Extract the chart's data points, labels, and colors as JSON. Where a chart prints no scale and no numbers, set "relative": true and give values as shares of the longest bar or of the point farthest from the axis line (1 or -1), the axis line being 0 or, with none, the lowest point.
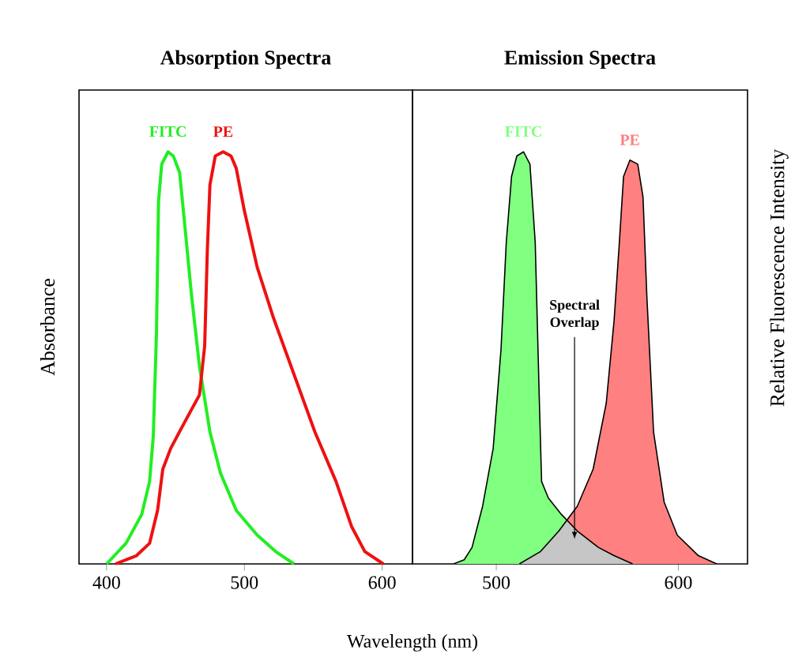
{
  "chart_data": [
    {
      "type": "line",
      "title": "Absorption Spectra",
      "xlabel": "Wavelength (nm)",
      "ylabel": "Absorbance",
      "relative": true,
      "xlim": [
        380,
        622
      ],
      "xticks": [
        400,
        500,
        600
      ],
      "series": [
        {
          "name": "FITC",
          "color": "#22ee22",
          "x": [
            400,
            414.1,
            425.5,
            431.2,
            433.9,
            436.2,
            437.7,
            440.0,
            444.6,
            448.4,
            453.0,
            456.8,
            461.7,
            467.4,
            475.0,
            482.7,
            494.1,
            509.3,
            522.7,
            536.0
          ],
          "values": [
            0,
            0.05,
            0.12,
            0.2,
            0.31,
            0.56,
            0.88,
            0.97,
            1,
            0.99,
            0.95,
            0.82,
            0.65,
            0.48,
            0.32,
            0.22,
            0.13,
            0.07,
            0.03,
            0
          ]
        },
        {
          "name": "PE",
          "color": "#ee1111",
          "x": [
            406.5,
            421.7,
            431.2,
            437.0,
            440.8,
            446.5,
            456.0,
            467.4,
            471.2,
            473.1,
            475.0,
            478.9,
            484.6,
            490.3,
            494.1,
            499.8,
            509.3,
            520.8,
            536.0,
            551.2,
            566.5,
            577.9,
            587.4,
            600.8
          ],
          "values": [
            0,
            0.02,
            0.05,
            0.13,
            0.23,
            0.28,
            0.34,
            0.41,
            0.53,
            0.76,
            0.92,
            0.99,
            1,
            0.99,
            0.96,
            0.86,
            0.72,
            0.6,
            0.46,
            0.32,
            0.2,
            0.09,
            0.03,
            0
          ]
        }
      ]
    },
    {
      "type": "area",
      "title": "Emission Spectra",
      "ylabel": "Relative Fluorescence Intensity",
      "relative": true,
      "xlim": [
        454,
        638
      ],
      "xticks": [
        500,
        600
      ],
      "annotations": [
        {
          "text": "Spectral Overlap",
          "x": 543,
          "y": 0.06
        }
      ],
      "series": [
        {
          "name": "FITC",
          "color": "#80ff80",
          "x": [
            476.6,
            482.4,
            486.7,
            492.5,
            498.3,
            502.6,
            505.5,
            508.4,
            511.3,
            515.0,
            518.5,
            521.4,
            523.7,
            524.9,
            528.6,
            535.8,
            544.5,
            556.1,
            564.7,
            574.9
          ],
          "values": [
            0,
            0.01,
            0.04,
            0.14,
            0.28,
            0.52,
            0.78,
            0.94,
            0.99,
            1,
            0.97,
            0.78,
            0.39,
            0.2,
            0.16,
            0.12,
            0.08,
            0.04,
            0.02,
            0
          ]
        },
        {
          "name": "PE",
          "color": "#ff8080",
          "x": [
            512.7,
            524.3,
            534.4,
            544.5,
            553.2,
            560.4,
            564.7,
            567.6,
            569.9,
            573.4,
            577.7,
            580.6,
            582.7,
            586.4,
            592.2,
            599.4,
            611.0,
            621.1
          ],
          "values": [
            0,
            0.03,
            0.08,
            0.14,
            0.23,
            0.39,
            0.59,
            0.78,
            0.94,
            0.98,
            0.97,
            0.89,
            0.65,
            0.32,
            0.15,
            0.07,
            0.02,
            0
          ]
        }
      ]
    }
  ]
}
